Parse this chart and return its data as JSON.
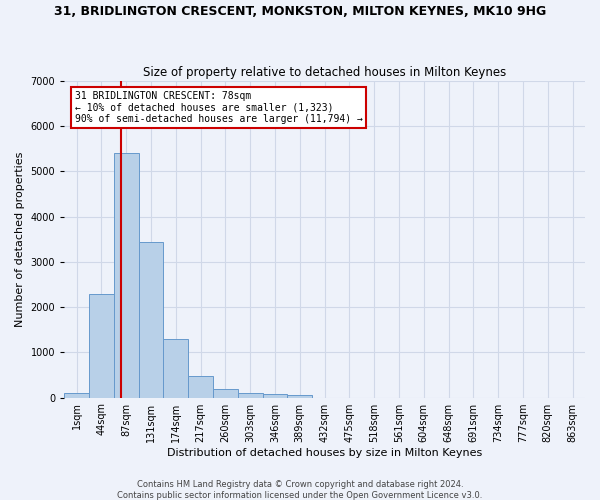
{
  "title": "31, BRIDLINGTON CRESCENT, MONKSTON, MILTON KEYNES, MK10 9HG",
  "subtitle": "Size of property relative to detached houses in Milton Keynes",
  "xlabel": "Distribution of detached houses by size in Milton Keynes",
  "ylabel": "Number of detached properties",
  "footer1": "Contains HM Land Registry data © Crown copyright and database right 2024.",
  "footer2": "Contains public sector information licensed under the Open Government Licence v3.0.",
  "bar_color": "#b8d0e8",
  "bar_edge_color": "#6699cc",
  "categories": [
    "1sqm",
    "44sqm",
    "87sqm",
    "131sqm",
    "174sqm",
    "217sqm",
    "260sqm",
    "303sqm",
    "346sqm",
    "389sqm",
    "432sqm",
    "475sqm",
    "518sqm",
    "561sqm",
    "604sqm",
    "648sqm",
    "691sqm",
    "734sqm",
    "777sqm",
    "820sqm",
    "863sqm"
  ],
  "values": [
    100,
    2300,
    5400,
    3450,
    1300,
    480,
    200,
    100,
    80,
    50,
    0,
    0,
    0,
    0,
    0,
    0,
    0,
    0,
    0,
    0,
    0
  ],
  "red_line_x": 1.78,
  "red_box_line1": "31 BRIDLINGTON CRESCENT: 78sqm",
  "red_box_line2": "← 10% of detached houses are smaller (1,323)",
  "red_box_line3": "90% of semi-detached houses are larger (11,794) →",
  "ylim": [
    0,
    7000
  ],
  "yticks": [
    0,
    1000,
    2000,
    3000,
    4000,
    5000,
    6000,
    7000
  ],
  "grid_color": "#d0d8e8",
  "bg_color": "#eef2fa",
  "plot_bg_color": "#eef2fa",
  "red_color": "#cc0000",
  "title_fontsize": 9,
  "subtitle_fontsize": 8.5,
  "xlabel_fontsize": 8,
  "ylabel_fontsize": 8,
  "tick_fontsize": 7,
  "footer_fontsize": 6
}
